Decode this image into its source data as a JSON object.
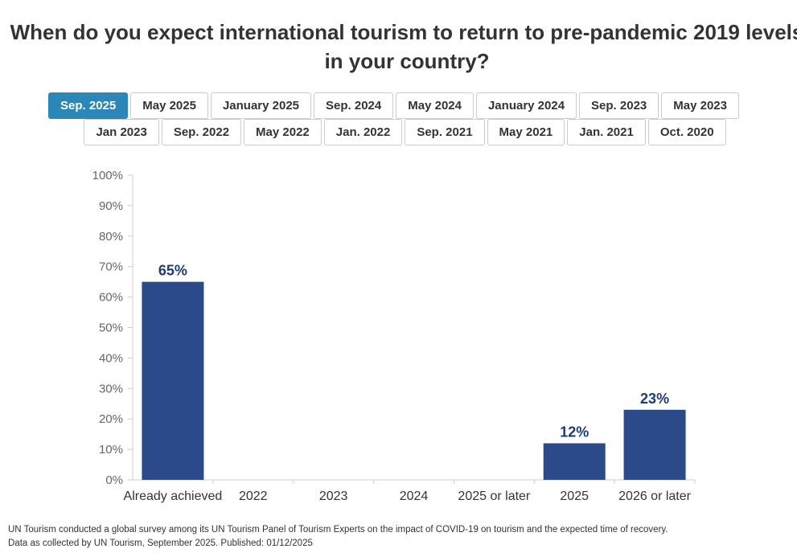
{
  "title": {
    "line1": "When do you expect international tourism to return to pre-pandemic 2019 levels",
    "line2": "in your country?"
  },
  "tabs": {
    "row1": [
      "Sep. 2025",
      "May 2025",
      "January 2025",
      "Sep. 2024",
      "May 2024",
      "January 2024",
      "Sep. 2023",
      "May 2023"
    ],
    "row2": [
      "Jan 2023",
      "Sep. 2022",
      "May 2022",
      "Jan. 2022",
      "Sep. 2021",
      "May 2021",
      "Jan. 2021",
      "Oct. 2020"
    ],
    "active": "Sep. 2025"
  },
  "colors": {
    "bar": "#2c4a8a",
    "label": "#1f3a73",
    "active_tab": "#2a87b8",
    "axis": "#cccccc"
  },
  "chart_data": {
    "type": "bar",
    "title": "When do you expect international tourism to return to pre-pandemic 2019 levels in your country?",
    "categories": [
      "Already achieved",
      "2022",
      "2023",
      "2024",
      "2025 or later",
      "2025",
      "2026 or later"
    ],
    "values": [
      65,
      null,
      null,
      null,
      null,
      12,
      23
    ],
    "data_labels": [
      "65%",
      "",
      "",
      "",
      "",
      "12%",
      "23%"
    ],
    "y_ticks": [
      "0%",
      "10%",
      "20%",
      "30%",
      "40%",
      "50%",
      "60%",
      "70%",
      "80%",
      "90%",
      "100%"
    ],
    "ylim": [
      0,
      100
    ],
    "xlabel": "",
    "ylabel": "",
    "grid": false
  },
  "footer": {
    "line1": "UN Tourism conducted a global survey among its UN Tourism Panel of Tourism Experts on the impact of COVID-19 on tourism and the expected time of recovery.",
    "line2": "Data as collected by UN Tourism, September 2025. Published: 01/12/2025"
  }
}
